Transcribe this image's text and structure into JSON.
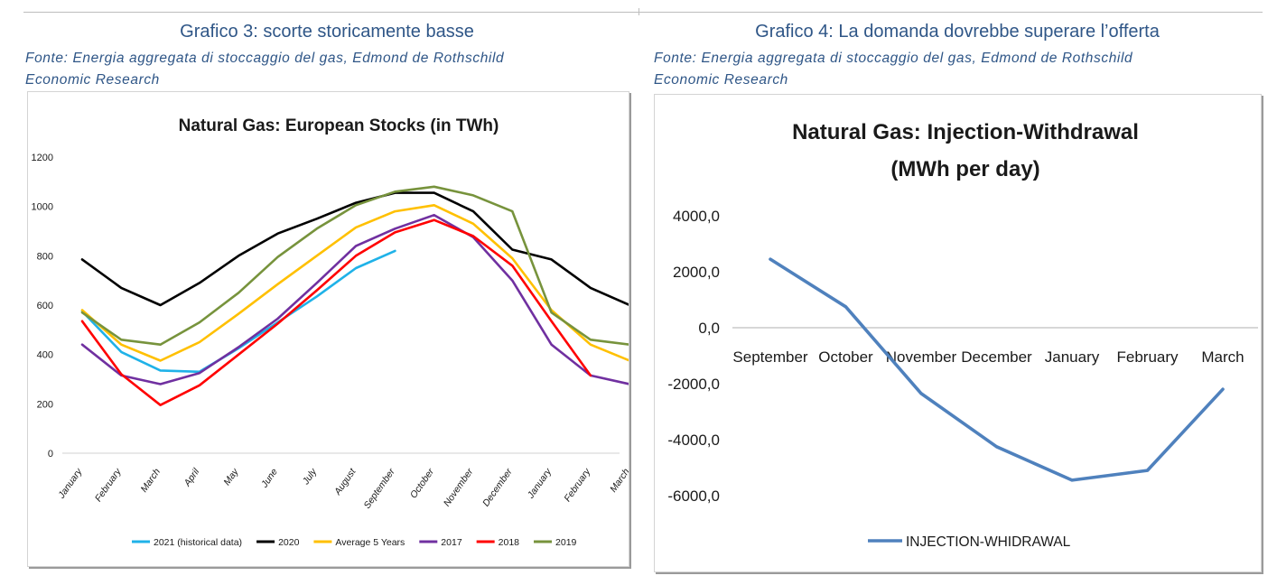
{
  "left": {
    "heading": "Grafico 3: scorte storicamente basse",
    "source_line1": "Fonte: Energia aggregata di stoccaggio del gas, Edmond de Rothschild",
    "source_line2": "Economic Research"
  },
  "right": {
    "heading": "Grafico 4: La domanda dovrebbe superare l’offerta",
    "source_line1": "Fonte: Energia aggregata di stoccaggio del gas, Edmond de Rothschild",
    "source_line2": "Economic Research"
  },
  "chart_data": [
    {
      "type": "line",
      "title": "Natural Gas: European Stocks (in TWh)",
      "xlabel": "",
      "ylabel": "",
      "ylim": [
        0,
        1200
      ],
      "yticks": [
        "0",
        "200",
        "400",
        "600",
        "800",
        "1000",
        "1200"
      ],
      "ytick_values": [
        0,
        200,
        400,
        600,
        800,
        1000,
        1200
      ],
      "categories": [
        "January",
        "February",
        "March",
        "April",
        "May",
        "June",
        "July",
        "August",
        "September",
        "October",
        "November",
        "December",
        "January",
        "February",
        "March"
      ],
      "grid": false,
      "legend": "bottom",
      "series": [
        {
          "name": "2021 (historical data)",
          "color": "#1fb2e8",
          "values": [
            575,
            410,
            335,
            330,
            425,
            530,
            635,
            750,
            820,
            null,
            null,
            null,
            null,
            null,
            null
          ]
        },
        {
          "name": "2020",
          "color": "#000000",
          "values": [
            785,
            670,
            600,
            690,
            800,
            890,
            950,
            1015,
            1055,
            1055,
            980,
            825,
            785,
            670,
            600
          ]
        },
        {
          "name": "Average 5 Years",
          "color": "#ffc000",
          "values": [
            580,
            440,
            375,
            450,
            565,
            685,
            800,
            915,
            980,
            1005,
            930,
            790,
            580,
            440,
            375
          ]
        },
        {
          "name": "2017",
          "color": "#7030a0",
          "values": [
            440,
            315,
            280,
            325,
            430,
            545,
            690,
            840,
            910,
            965,
            875,
            700,
            440,
            315,
            280
          ]
        },
        {
          "name": "2018",
          "color": "#ff0000",
          "values": [
            535,
            320,
            195,
            275,
            400,
            525,
            660,
            800,
            895,
            945,
            880,
            760,
            535,
            315,
            null
          ]
        },
        {
          "name": "2019",
          "color": "#77933c",
          "values": [
            570,
            460,
            440,
            530,
            650,
            795,
            910,
            1005,
            1060,
            1080,
            1045,
            980,
            570,
            460,
            440
          ]
        }
      ]
    },
    {
      "type": "line",
      "title": "Natural Gas: Injection-Withdrawal",
      "subtitle": "(MWh per day)",
      "xlabel": "",
      "ylabel": "",
      "ylim": [
        -6000,
        4000
      ],
      "yticks": [
        "4000,0",
        "2000,0",
        "0,0",
        "-2000,0",
        "-4000,0",
        "-6000,0"
      ],
      "ytick_values": [
        4000,
        2000,
        0,
        -2000,
        -4000,
        -6000
      ],
      "categories": [
        "September",
        "October",
        "November",
        "December",
        "January",
        "February",
        "March"
      ],
      "grid": false,
      "legend": "bottom",
      "series": [
        {
          "name": "INJECTION-WHIDRAWAL",
          "color": "#4f81bd",
          "values": [
            2450,
            750,
            -2350,
            -4250,
            -5450,
            -5100,
            -2200
          ]
        }
      ]
    }
  ]
}
